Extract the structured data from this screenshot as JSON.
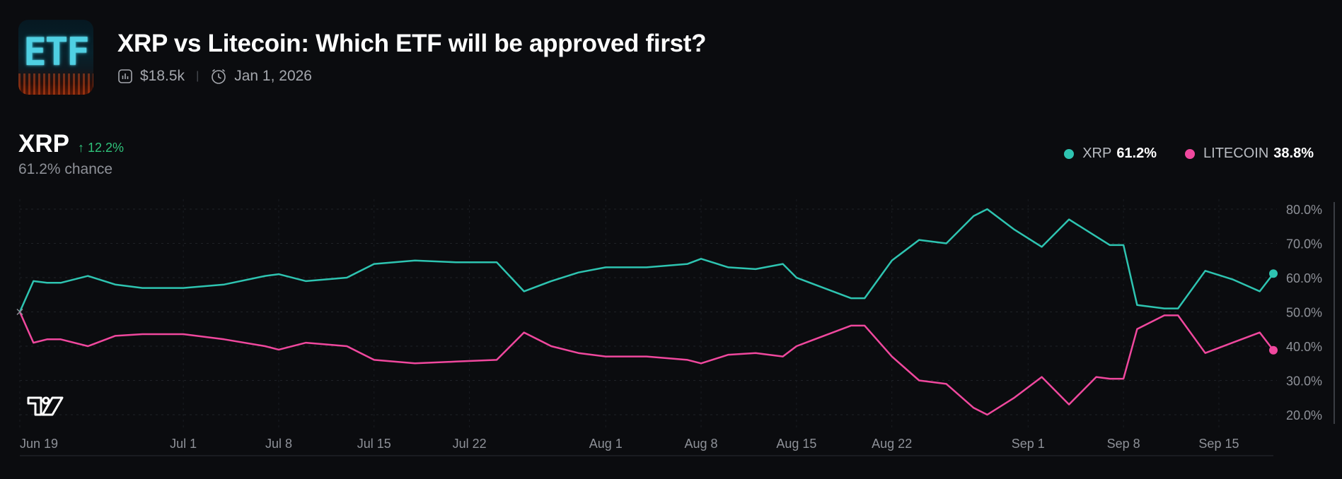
{
  "header": {
    "thumb_text": "ETF",
    "title": "XRP vs Litecoin: Which ETF will be approved first?",
    "volume": "$18.5k",
    "end_date": "Jan 1, 2026",
    "volume_icon": "bar-chart-icon",
    "date_icon": "clock-icon"
  },
  "selected": {
    "name": "XRP",
    "change": "↑ 12.2%",
    "chance": "61.2% chance"
  },
  "legend": [
    {
      "name": "XRP",
      "value": "61.2%",
      "color": "#2ec4b1"
    },
    {
      "name": "LITECOIN",
      "value": "38.8%",
      "color": "#f0489e"
    }
  ],
  "colors": {
    "xrp": "#2ec4b1",
    "litecoin": "#f0489e",
    "background": "#0b0c0f",
    "up": "#2fc27a"
  },
  "chart_data": {
    "type": "line",
    "x_dates": [
      "Jun 19",
      "Jun 20",
      "Jun 21",
      "Jun 22",
      "Jun 24",
      "Jun 26",
      "Jun 28",
      "Jul 1",
      "Jul 4",
      "Jul 7",
      "Jul 8",
      "Jul 10",
      "Jul 13",
      "Jul 15",
      "Jul 18",
      "Jul 21",
      "Jul 24",
      "Jul 26",
      "Jul 28",
      "Jul 30",
      "Aug 1",
      "Aug 4",
      "Aug 7",
      "Aug 8",
      "Aug 10",
      "Aug 12",
      "Aug 14",
      "Aug 15",
      "Aug 17",
      "Aug 19",
      "Aug 20",
      "Aug 22",
      "Aug 24",
      "Aug 26",
      "Aug 28",
      "Aug 29",
      "Aug 31",
      "Sep 2",
      "Sep 4",
      "Sep 6",
      "Sep 7",
      "Sep 8",
      "Sep 9",
      "Sep 11",
      "Sep 12",
      "Sep 14",
      "Sep 16",
      "Sep 18",
      "Sep 19"
    ],
    "series": [
      {
        "name": "XRP",
        "color": "#2ec4b1",
        "values": [
          50,
          59,
          58.5,
          58.5,
          60.5,
          58,
          57,
          57,
          58,
          60.5,
          61,
          59,
          60,
          64,
          65,
          64.5,
          64.5,
          56,
          59,
          61.5,
          63,
          63,
          64,
          65.5,
          63,
          62.5,
          64,
          60,
          57,
          54,
          54,
          65,
          71,
          70,
          78,
          80,
          74,
          69,
          77,
          72,
          69.5,
          69.5,
          52,
          51,
          51,
          62,
          59.5,
          56,
          61.2
        ]
      },
      {
        "name": "LITECOIN",
        "color": "#f0489e",
        "values": [
          50,
          41,
          42,
          42,
          40,
          43,
          43.5,
          43.5,
          42,
          40,
          39,
          41,
          40,
          36,
          35,
          35.5,
          36,
          44,
          40,
          38,
          37,
          37,
          36,
          35,
          37.5,
          38,
          37,
          40,
          43,
          46,
          46,
          37,
          30,
          29,
          22,
          20,
          25,
          31,
          23,
          31,
          30.5,
          30.5,
          45,
          49,
          49,
          38,
          41,
          44,
          38.8
        ]
      }
    ],
    "x_ticks": [
      "Jun 19",
      "Jul 1",
      "Jul 8",
      "Jul 15",
      "Jul 22",
      "Aug 1",
      "Aug 8",
      "Aug 15",
      "Aug 22",
      "Sep 1",
      "Sep 8",
      "Sep 15"
    ],
    "y_ticks": [
      "80.0%",
      "70.0%",
      "60.0%",
      "50.0%",
      "40.0%",
      "30.0%",
      "20.0%"
    ],
    "ylim": [
      17,
      82
    ],
    "xlabel": "",
    "ylabel": "",
    "grid": true,
    "legend_position": "top-right"
  }
}
